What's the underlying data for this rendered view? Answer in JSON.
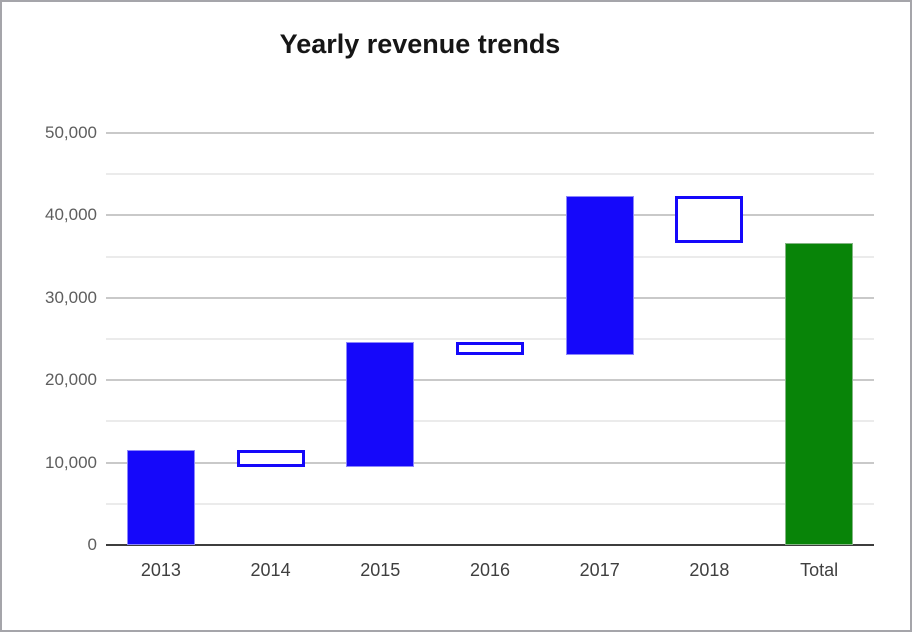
{
  "window": {
    "background": "#ffffff",
    "frame_border_color": "#a5a5aa"
  },
  "chart_data": {
    "type": "bar",
    "subtype": "waterfall",
    "title": "Yearly revenue trends",
    "categories": [
      "2013",
      "2014",
      "2015",
      "2016",
      "2017",
      "2018",
      "Total"
    ],
    "bars": [
      {
        "label": "2013",
        "start": 0,
        "end": 11500,
        "kind": "increase"
      },
      {
        "label": "2014",
        "start": 11500,
        "end": 9500,
        "kind": "decrease"
      },
      {
        "label": "2015",
        "start": 9500,
        "end": 24600,
        "kind": "increase"
      },
      {
        "label": "2016",
        "start": 24600,
        "end": 23000,
        "kind": "decrease"
      },
      {
        "label": "2017",
        "start": 23000,
        "end": 42300,
        "kind": "increase"
      },
      {
        "label": "2018",
        "start": 42300,
        "end": 36700,
        "kind": "decrease"
      },
      {
        "label": "Total",
        "start": 0,
        "end": 36700,
        "kind": "total"
      }
    ],
    "y_axis": {
      "min": 0,
      "max": 50000,
      "major_step": 10000,
      "minor_step": 5000,
      "tick_labels": [
        "0",
        "10,000",
        "20,000",
        "30,000",
        "40,000",
        "50,000"
      ]
    },
    "xlabel": "",
    "ylabel": "",
    "legend": "none",
    "grid": true,
    "colors": {
      "increase_fill": "#1508fa",
      "decrease_fill": "#ffffff",
      "decrease_border": "#1508fa",
      "total_fill": "#088408",
      "major_gridline": "#c9c9c9",
      "minor_gridline": "#ebebeb",
      "baseline": "#3d3d3d",
      "title_text": "#161616",
      "y_tick_text": "#5e5e5e",
      "x_tick_text": "#3f3f3f"
    }
  }
}
